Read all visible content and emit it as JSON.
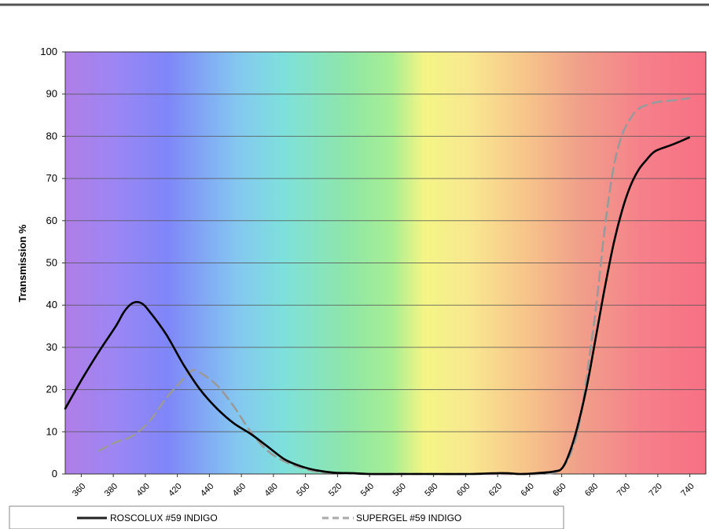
{
  "chart_data": {
    "type": "line",
    "title": "",
    "xlabel": "",
    "ylabel": "Transmission %",
    "xlim": [
      360,
      740
    ],
    "ylim": [
      0,
      100
    ],
    "grid": true,
    "background": "visible spectrum gradient (violet to red)",
    "y_ticks": [
      "0",
      "10",
      "20",
      "30",
      "40",
      "50",
      "60",
      "70",
      "80",
      "90",
      "100"
    ],
    "x_ticks": [
      "360",
      "380",
      "400",
      "420",
      "440",
      "460",
      "480",
      "500",
      "520",
      "540",
      "560",
      "580",
      "600",
      "620",
      "640",
      "660",
      "680",
      "700",
      "720",
      "740"
    ],
    "legend_position": "bottom",
    "series": [
      {
        "name": "ROSCOLUX #59 INDIGO",
        "color": "#000000",
        "style": "solid",
        "points": [
          [
            360,
            15.5
          ],
          [
            370,
            22.5
          ],
          [
            380,
            29
          ],
          [
            390,
            35
          ],
          [
            395,
            38.5
          ],
          [
            400,
            40.5
          ],
          [
            405,
            40.5
          ],
          [
            410,
            38.5
          ],
          [
            420,
            33
          ],
          [
            430,
            26
          ],
          [
            440,
            20
          ],
          [
            450,
            15.5
          ],
          [
            460,
            12
          ],
          [
            470,
            9.5
          ],
          [
            480,
            6.5
          ],
          [
            490,
            3.5
          ],
          [
            500,
            1.8
          ],
          [
            510,
            0.8
          ],
          [
            520,
            0.3
          ],
          [
            530,
            0.2
          ],
          [
            540,
            0
          ],
          [
            560,
            0
          ],
          [
            580,
            0
          ],
          [
            600,
            0
          ],
          [
            620,
            0.2
          ],
          [
            630,
            0
          ],
          [
            640,
            0.2
          ],
          [
            650,
            0.6
          ],
          [
            655,
            1.5
          ],
          [
            660,
            6
          ],
          [
            665,
            13
          ],
          [
            670,
            22
          ],
          [
            675,
            33
          ],
          [
            680,
            44
          ],
          [
            685,
            54
          ],
          [
            690,
            62
          ],
          [
            695,
            68
          ],
          [
            700,
            72
          ],
          [
            705,
            74.5
          ],
          [
            710,
            76.5
          ],
          [
            720,
            78
          ],
          [
            730,
            79.7
          ]
        ]
      },
      {
        "name": "SUPERGEL #59 INDIGO",
        "color": "#9a9a9a",
        "style": "dashed",
        "points": [
          [
            380,
            5.5
          ],
          [
            390,
            7.5
          ],
          [
            400,
            9
          ],
          [
            410,
            12.5
          ],
          [
            420,
            18
          ],
          [
            430,
            22.5
          ],
          [
            435,
            24.5
          ],
          [
            440,
            24
          ],
          [
            450,
            21
          ],
          [
            460,
            16
          ],
          [
            470,
            10
          ],
          [
            480,
            5.5
          ],
          [
            490,
            3
          ],
          [
            500,
            1.5
          ],
          [
            510,
            0.5
          ],
          [
            520,
            0.3
          ],
          [
            540,
            0
          ],
          [
            560,
            0
          ],
          [
            580,
            0
          ],
          [
            600,
            0
          ],
          [
            620,
            0
          ],
          [
            640,
            0
          ],
          [
            650,
            0.3
          ],
          [
            655,
            1.5
          ],
          [
            660,
            5
          ],
          [
            665,
            12
          ],
          [
            670,
            25
          ],
          [
            675,
            40
          ],
          [
            680,
            58
          ],
          [
            685,
            72
          ],
          [
            690,
            80
          ],
          [
            695,
            84
          ],
          [
            700,
            86.5
          ],
          [
            710,
            88
          ],
          [
            720,
            88.5
          ],
          [
            730,
            89
          ]
        ]
      }
    ]
  }
}
